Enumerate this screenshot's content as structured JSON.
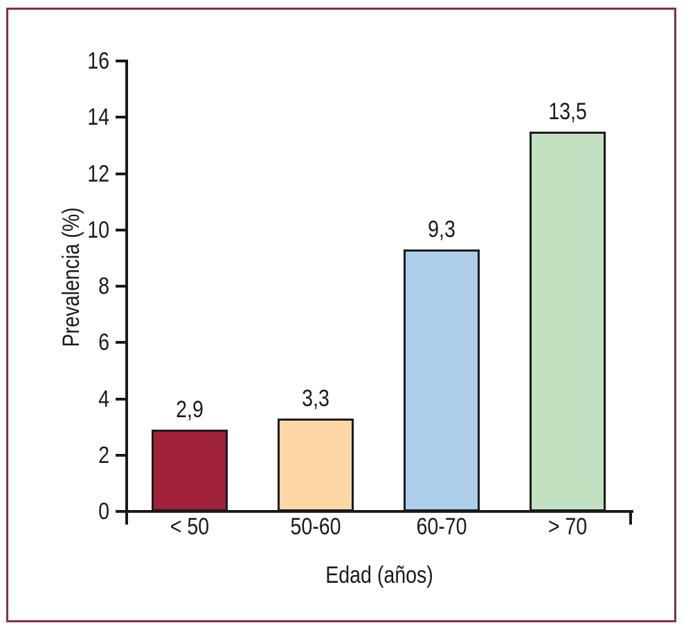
{
  "figure": {
    "border_color": "#822F4E",
    "background_color": "#FFFFFF",
    "axis_color": "#1A1A1A",
    "text_color": "#1A1A1A"
  },
  "chart_data": {
    "type": "bar",
    "title": "",
    "xlabel": "Edad (años)",
    "ylabel": "Prevalencia (%)",
    "categories": [
      "< 50",
      "50-60",
      "60-70",
      "> 70"
    ],
    "values": [
      2.9,
      3.3,
      9.3,
      13.5
    ],
    "value_labels": [
      "2,9",
      "3,3",
      "9,3",
      "13,5"
    ],
    "bar_colors": [
      "#A02339",
      "#FDD8A6",
      "#ADCEEB",
      "#C2E1C1"
    ],
    "ylim": [
      0,
      16
    ],
    "yticks": [
      0,
      2,
      4,
      6,
      8,
      10,
      12,
      14,
      16
    ],
    "grid": false,
    "legend": "none"
  }
}
